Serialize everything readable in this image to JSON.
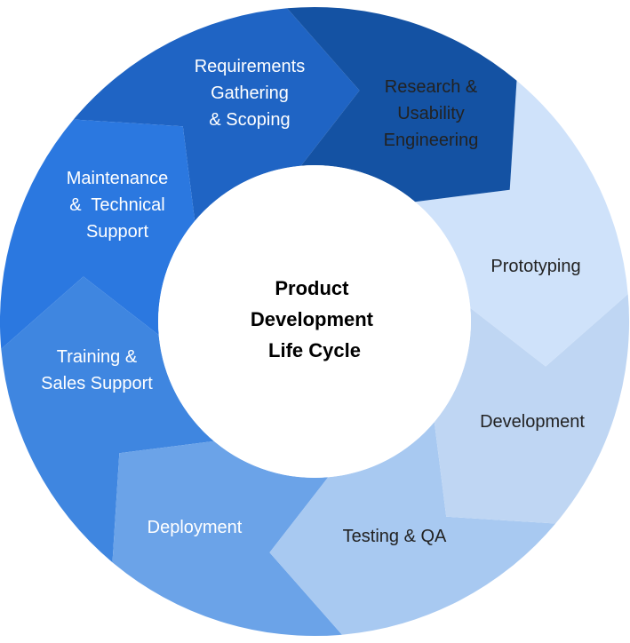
{
  "diagram": {
    "center_title": {
      "lines": [
        "Product",
        "Development",
        "Life Cycle"
      ]
    },
    "stages": [
      {
        "lines": [
          "Requirements",
          "Gathering",
          "& Scoping"
        ],
        "color": "#1452a3",
        "text_color": "#ffffff"
      },
      {
        "lines": [
          "Research &",
          "Usability",
          "Engineering"
        ],
        "color": "#cfe2fa",
        "text_color": "#222222"
      },
      {
        "lines": [
          "Prototyping"
        ],
        "color": "#bfd6f3",
        "text_color": "#222222"
      },
      {
        "lines": [
          "Development"
        ],
        "color": "#a8c9f1",
        "text_color": "#222222"
      },
      {
        "lines": [
          "Testing & QA"
        ],
        "color": "#6ba3e8",
        "text_color": "#222222"
      },
      {
        "lines": [
          "Deployment"
        ],
        "color": "#3f86e0",
        "text_color": "#ffffff"
      },
      {
        "lines": [
          "Training &",
          "Sales Support"
        ],
        "color": "#2b78e0",
        "text_color": "#ffffff"
      },
      {
        "lines": [
          "Maintenance",
          "&  Technical",
          "Support"
        ],
        "color": "#1f64c4",
        "text_color": "#ffffff"
      }
    ]
  }
}
